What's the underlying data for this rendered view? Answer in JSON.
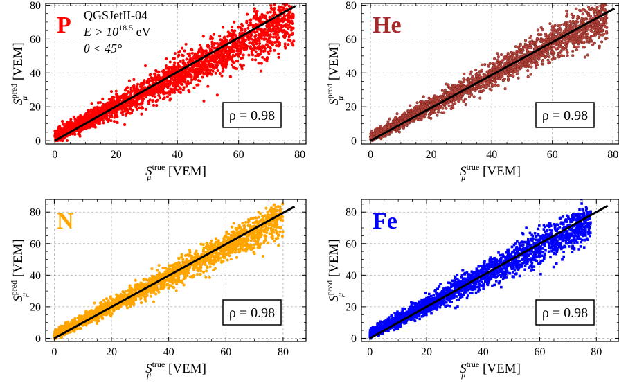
{
  "figure": {
    "annotation_lines": [
      "QGSJetII-04",
      "E > 10",
      "18.5",
      " eV",
      "θ < 45°"
    ]
  },
  "chart_data": [
    {
      "type": "scatter",
      "panel_label": "P",
      "label_color": "#ff0000",
      "point_color": "#ff0000",
      "point_edge": "#ff0000",
      "marker": "circle",
      "spread": 1.0,
      "xlim": [
        -3,
        82
      ],
      "ylim": [
        -2,
        81
      ],
      "xticks": [
        0,
        20,
        40,
        60,
        80
      ],
      "yticks": [
        0,
        20,
        40,
        60,
        80
      ],
      "xlabel": {
        "base": "S",
        "sub": "μ",
        "sup": "true",
        "unit": " [VEM]"
      },
      "ylabel": {
        "base": "S",
        "sub": "μ",
        "sup": "pred",
        "unit": " [VEM]"
      },
      "fit_line": {
        "x": [
          0,
          78.5
        ],
        "y": [
          0,
          79.5
        ]
      },
      "rho_label": "ρ = 0.98",
      "point_cloud": {
        "x_range": [
          0,
          78
        ],
        "slope": 0.9,
        "intercept": 2.5,
        "n": 2600
      },
      "grid": true
    },
    {
      "type": "scatter",
      "panel_label": "He",
      "label_color": "#a52a2a",
      "point_color": "#b5473f",
      "point_edge": "#6e1a14",
      "marker": "circle",
      "spread": 0.8,
      "xlim": [
        -3,
        82
      ],
      "ylim": [
        -2,
        81
      ],
      "xticks": [
        0,
        20,
        40,
        60,
        80
      ],
      "yticks": [
        0,
        20,
        40,
        60,
        80
      ],
      "xlabel": {
        "base": "S",
        "sub": "μ",
        "sup": "true",
        "unit": " [VEM]"
      },
      "ylabel": {
        "base": "S",
        "sub": "μ",
        "sup": "pred",
        "unit": " [VEM]"
      },
      "fit_line": {
        "x": [
          0,
          80.5
        ],
        "y": [
          0,
          78
        ]
      },
      "rho_label": "ρ = 0.98",
      "point_cloud": {
        "x_range": [
          0,
          78
        ],
        "slope": 0.92,
        "intercept": 2.0,
        "n": 2200
      },
      "grid": true
    },
    {
      "type": "scatter",
      "panel_label": "N",
      "label_color": "#ffa500",
      "point_color": "#ffa500",
      "point_edge": "#ffa500",
      "marker": "circle",
      "spread": 0.75,
      "xlim": [
        -3,
        88
      ],
      "ylim": [
        -2,
        88
      ],
      "xticks": [
        0,
        20,
        40,
        60,
        80
      ],
      "yticks": [
        0,
        20,
        40,
        60,
        80
      ],
      "xlabel": {
        "base": "S",
        "sub": "μ",
        "sup": "true",
        "unit": " [VEM]"
      },
      "ylabel": {
        "base": "S",
        "sub": "μ",
        "sup": "pred",
        "unit": " [VEM]"
      },
      "fit_line": {
        "x": [
          0,
          84
        ],
        "y": [
          0,
          83.5
        ]
      },
      "rho_label": "ρ = 0.98",
      "point_cloud": {
        "x_range": [
          0,
          80
        ],
        "slope": 0.93,
        "intercept": 2.0,
        "n": 2200
      },
      "grid": true
    },
    {
      "type": "scatter",
      "panel_label": "Fe",
      "label_color": "#0000ff",
      "point_color": "#0000ff",
      "point_edge": "#0000ff",
      "marker": "square",
      "spread": 0.85,
      "xlim": [
        -3,
        88
      ],
      "ylim": [
        -2,
        88
      ],
      "xticks": [
        0,
        20,
        40,
        60,
        80
      ],
      "yticks": [
        0,
        20,
        40,
        60,
        80
      ],
      "xlabel": {
        "base": "S",
        "sub": "μ",
        "sup": "true",
        "unit": " [VEM]"
      },
      "ylabel": {
        "base": "S",
        "sub": "μ",
        "sup": "pred",
        "unit": " [VEM]"
      },
      "fit_line": {
        "x": [
          0,
          84
        ],
        "y": [
          0,
          84
        ]
      },
      "rho_label": "ρ = 0.98",
      "point_cloud": {
        "x_range": [
          0,
          78
        ],
        "slope": 0.92,
        "intercept": 2.5,
        "n": 2400
      },
      "grid": true
    }
  ]
}
